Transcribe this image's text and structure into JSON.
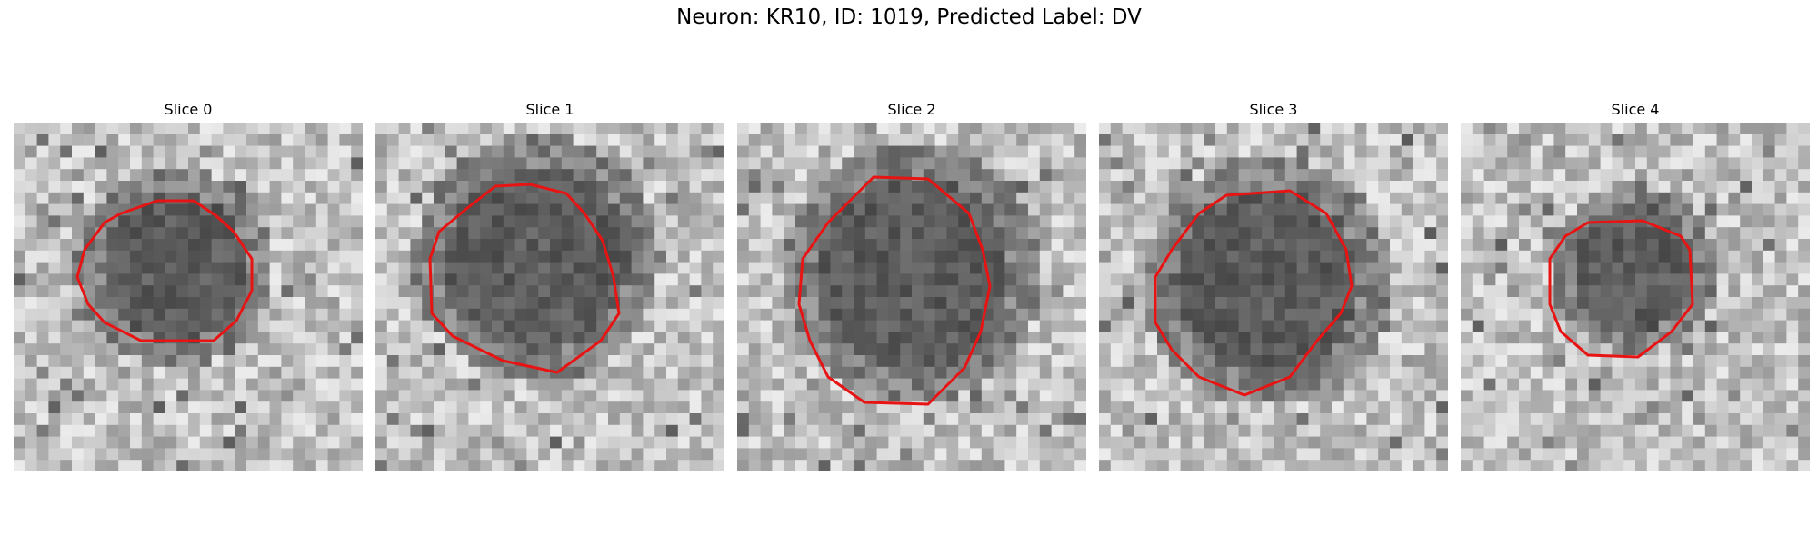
{
  "figure": {
    "title": "Neuron: KR10, ID: 1019, Predicted Label: DV"
  },
  "slices": [
    {
      "title": "Slice 0",
      "outline_color": "#e81313"
    },
    {
      "title": "Slice 1",
      "outline_color": "#e81313"
    },
    {
      "title": "Slice 2",
      "outline_color": "#e81313"
    },
    {
      "title": "Slice 3",
      "outline_color": "#e81313"
    },
    {
      "title": "Slice 4",
      "outline_color": "#e81313"
    }
  ]
}
